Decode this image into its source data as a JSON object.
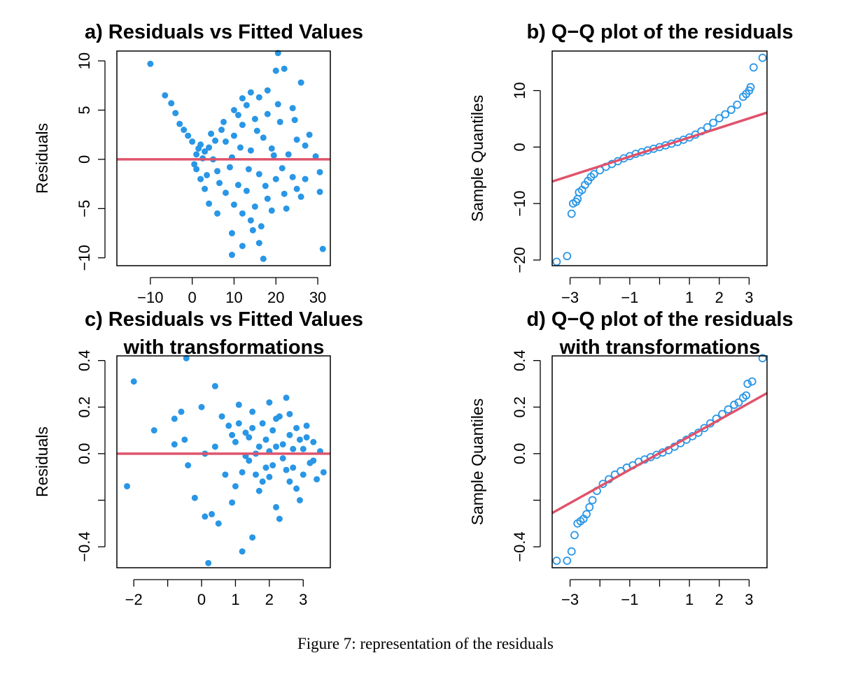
{
  "figure": {
    "caption": "Figure 7: representation of the residuals"
  },
  "colors": {
    "points": "#2996e6",
    "refline": "#df536b",
    "axes": "#000000"
  },
  "chart_data": [
    {
      "type": "scatter",
      "title_lines": [
        "a) Residuals vs Fitted Values"
      ],
      "xlabel": "",
      "ylabel": "Residuals",
      "xlim": [
        -18,
        33
      ],
      "ylim": [
        -10.8,
        11
      ],
      "xticks": [
        -10,
        0,
        10,
        20,
        30
      ],
      "xtick_labels": [
        "−10",
        "0",
        "10",
        "20",
        "30"
      ],
      "yticks": [
        -10,
        -5,
        0,
        5,
        10
      ],
      "ytick_labels": [
        "−10",
        "−5",
        "0",
        "5",
        "10"
      ],
      "marker": "filled",
      "refline": {
        "kind": "hline",
        "y": 0
      },
      "points": [
        [
          -10.0,
          9.7
        ],
        [
          -6.5,
          6.5
        ],
        [
          -5.0,
          5.7
        ],
        [
          -4.0,
          4.7
        ],
        [
          -3.0,
          3.6
        ],
        [
          -2.0,
          3.0
        ],
        [
          -1.0,
          2.4
        ],
        [
          0.0,
          1.8
        ],
        [
          2.0,
          1.5
        ],
        [
          4.0,
          1.2
        ],
        [
          7.0,
          3.0
        ],
        [
          10.0,
          5.0
        ],
        [
          12.0,
          6.2
        ],
        [
          14.0,
          6.8
        ],
        [
          16.0,
          6.3
        ],
        [
          18.0,
          7.0
        ],
        [
          20.0,
          9.0
        ],
        [
          20.5,
          10.8
        ],
        [
          22.0,
          9.2
        ],
        [
          26.0,
          7.8
        ],
        [
          24.0,
          5.2
        ],
        [
          28.0,
          2.5
        ],
        [
          29.5,
          0.3
        ],
        [
          30.5,
          -1.3
        ],
        [
          30.5,
          -3.3
        ],
        [
          31.2,
          -9.1
        ],
        [
          17.0,
          -10.1
        ],
        [
          16.0,
          -8.5
        ],
        [
          12.0,
          -8.8
        ],
        [
          9.5,
          -9.7
        ],
        [
          9.5,
          -7.5
        ],
        [
          6.0,
          -5.5
        ],
        [
          4.0,
          -4.5
        ],
        [
          3.0,
          -3.0
        ],
        [
          2.0,
          -2.0
        ],
        [
          1.0,
          -1.0
        ],
        [
          0.5,
          -0.5
        ],
        [
          1.0,
          0.5
        ],
        [
          3.0,
          0.8
        ],
        [
          5.0,
          0.0
        ],
        [
          6.0,
          -1.2
        ],
        [
          8.0,
          1.8
        ],
        [
          9.0,
          -0.8
        ],
        [
          10.0,
          2.4
        ],
        [
          11.0,
          -2.6
        ],
        [
          12.0,
          3.5
        ],
        [
          13.0,
          -3.2
        ],
        [
          14.0,
          0.9
        ],
        [
          15.0,
          4.1
        ],
        [
          16.0,
          -1.5
        ],
        [
          17.0,
          2.2
        ],
        [
          18.0,
          -4.0
        ],
        [
          19.0,
          1.1
        ],
        [
          20.0,
          -2.0
        ],
        [
          21.0,
          3.8
        ],
        [
          22.0,
          -3.5
        ],
        [
          23.0,
          0.5
        ],
        [
          24.0,
          -1.8
        ],
        [
          25.0,
          2.0
        ],
        [
          26.0,
          -3.8
        ],
        [
          27.0,
          1.4
        ],
        [
          8.0,
          -3.4
        ],
        [
          10.0,
          -4.6
        ],
        [
          12.0,
          -5.5
        ],
        [
          14.0,
          -6.2
        ],
        [
          11.0,
          4.5
        ],
        [
          13.0,
          5.5
        ],
        [
          15.0,
          -4.8
        ],
        [
          18.0,
          4.6
        ],
        [
          19.0,
          -5.2
        ],
        [
          20.5,
          5.6
        ],
        [
          7.5,
          3.8
        ],
        [
          6.5,
          -2.4
        ],
        [
          5.5,
          1.9
        ],
        [
          9.5,
          0.2
        ],
        [
          11.5,
          1.2
        ],
        [
          13.5,
          -1.0
        ],
        [
          15.5,
          2.9
        ],
        [
          17.5,
          -2.7
        ],
        [
          19.5,
          0.4
        ],
        [
          21.5,
          -0.9
        ],
        [
          4.5,
          2.6
        ],
        [
          3.5,
          -1.6
        ],
        [
          2.5,
          0.1
        ],
        [
          1.5,
          1.1
        ],
        [
          16.5,
          -6.8
        ],
        [
          14.5,
          -7.2
        ],
        [
          22.5,
          -5.0
        ],
        [
          25.0,
          -3.0
        ],
        [
          27.0,
          -2.0
        ],
        [
          24.5,
          4.0
        ]
      ]
    },
    {
      "type": "scatter",
      "title_lines": [
        "b) Q−Q plot of the residuals"
      ],
      "xlabel": "",
      "ylabel": "Sample Quantiles",
      "xlim": [
        -3.6,
        3.6
      ],
      "ylim": [
        -21,
        17
      ],
      "xticks": [
        -3,
        -2,
        -1,
        0,
        1,
        2,
        3
      ],
      "xtick_labels": [
        "−3",
        "",
        "−1",
        "",
        "1",
        "2",
        "3"
      ],
      "yticks": [
        -20,
        -10,
        0,
        10
      ],
      "ytick_labels": [
        "−20",
        "−10",
        "0",
        "10"
      ],
      "marker": "open",
      "refline": {
        "kind": "line",
        "x0": -3.6,
        "y0": -6.1,
        "x1": 3.6,
        "y1": 6.1
      },
      "points": [
        [
          -3.45,
          -20.3
        ],
        [
          -3.1,
          -19.3
        ],
        [
          -2.95,
          -11.8
        ],
        [
          -2.9,
          -10.0
        ],
        [
          -2.8,
          -9.7
        ],
        [
          -2.75,
          -9.2
        ],
        [
          -2.7,
          -8.0
        ],
        [
          -2.6,
          -7.6
        ],
        [
          -2.5,
          -6.7
        ],
        [
          -2.4,
          -6.0
        ],
        [
          -2.3,
          -5.3
        ],
        [
          -2.2,
          -4.8
        ],
        [
          -2.0,
          -4.1
        ],
        [
          -1.8,
          -3.5
        ],
        [
          -1.6,
          -3.0
        ],
        [
          -1.4,
          -2.5
        ],
        [
          -1.2,
          -2.0
        ],
        [
          -1.0,
          -1.6
        ],
        [
          -0.8,
          -1.2
        ],
        [
          -0.6,
          -0.9
        ],
        [
          -0.4,
          -0.6
        ],
        [
          -0.2,
          -0.3
        ],
        [
          0.0,
          0.0
        ],
        [
          0.2,
          0.3
        ],
        [
          0.4,
          0.6
        ],
        [
          0.6,
          0.9
        ],
        [
          0.8,
          1.3
        ],
        [
          1.0,
          1.7
        ],
        [
          1.2,
          2.2
        ],
        [
          1.4,
          2.8
        ],
        [
          1.6,
          3.5
        ],
        [
          1.8,
          4.3
        ],
        [
          2.0,
          5.1
        ],
        [
          2.2,
          5.8
        ],
        [
          2.4,
          6.6
        ],
        [
          2.6,
          7.5
        ],
        [
          2.8,
          8.9
        ],
        [
          2.9,
          9.4
        ],
        [
          3.0,
          10.0
        ],
        [
          3.05,
          10.6
        ],
        [
          3.15,
          14.1
        ],
        [
          3.45,
          15.8
        ]
      ]
    },
    {
      "type": "scatter",
      "title_lines": [
        "c) Residuals vs Fitted Values",
        "with transformations"
      ],
      "xlabel": "",
      "ylabel": "Residuals",
      "xlim": [
        -2.5,
        3.8
      ],
      "ylim": [
        -0.49,
        0.42
      ],
      "xticks": [
        -2,
        -1,
        0,
        1,
        2,
        3
      ],
      "xtick_labels": [
        "−2",
        "",
        "0",
        "1",
        "2",
        "3"
      ],
      "yticks": [
        -0.4,
        -0.2,
        0.0,
        0.2,
        0.4
      ],
      "ytick_labels": [
        "−0.4",
        "",
        "0.0",
        "0.2",
        "0.4"
      ],
      "marker": "filled",
      "refline": {
        "kind": "hline",
        "y": 0
      },
      "points": [
        [
          -2.2,
          -0.14
        ],
        [
          -2.0,
          0.31
        ],
        [
          -1.4,
          0.1
        ],
        [
          -0.8,
          0.15
        ],
        [
          -0.8,
          0.04
        ],
        [
          -0.6,
          0.18
        ],
        [
          -0.5,
          0.06
        ],
        [
          -0.4,
          -0.05
        ],
        [
          -0.45,
          0.41
        ],
        [
          -0.2,
          -0.19
        ],
        [
          0.0,
          0.2
        ],
        [
          0.1,
          0.0
        ],
        [
          0.1,
          -0.27
        ],
        [
          0.2,
          -0.47
        ],
        [
          0.3,
          -0.26
        ],
        [
          0.4,
          0.03
        ],
        [
          0.4,
          0.29
        ],
        [
          0.5,
          -0.3
        ],
        [
          0.6,
          0.16
        ],
        [
          0.7,
          -0.09
        ],
        [
          0.8,
          0.12
        ],
        [
          0.9,
          -0.21
        ],
        [
          1.0,
          0.05
        ],
        [
          1.0,
          -0.14
        ],
        [
          1.1,
          0.21
        ],
        [
          1.2,
          -0.08
        ],
        [
          1.2,
          -0.42
        ],
        [
          1.3,
          0.09
        ],
        [
          1.4,
          -0.03
        ],
        [
          1.5,
          0.18
        ],
        [
          1.5,
          -0.36
        ],
        [
          1.6,
          0.0
        ],
        [
          1.7,
          -0.16
        ],
        [
          1.8,
          0.13
        ],
        [
          1.9,
          0.06
        ],
        [
          2.0,
          -0.1
        ],
        [
          2.0,
          0.22
        ],
        [
          2.1,
          -0.05
        ],
        [
          2.2,
          0.03
        ],
        [
          2.2,
          -0.23
        ],
        [
          2.3,
          0.16
        ],
        [
          2.3,
          -0.28
        ],
        [
          2.4,
          -0.02
        ],
        [
          2.5,
          0.24
        ],
        [
          2.6,
          0.08
        ],
        [
          2.6,
          -0.12
        ],
        [
          2.7,
          -0.06
        ],
        [
          2.8,
          0.11
        ],
        [
          2.9,
          -0.2
        ],
        [
          3.0,
          0.02
        ],
        [
          3.0,
          -0.09
        ],
        [
          3.1,
          0.07
        ],
        [
          3.2,
          -0.04
        ],
        [
          3.3,
          0.05
        ],
        [
          3.4,
          -0.11
        ],
        [
          3.5,
          0.01
        ],
        [
          3.6,
          -0.08
        ],
        [
          1.4,
          0.07
        ],
        [
          1.7,
          0.03
        ],
        [
          1.9,
          -0.06
        ],
        [
          2.1,
          0.1
        ],
        [
          2.4,
          0.04
        ],
        [
          2.7,
          0.02
        ],
        [
          1.6,
          -0.09
        ],
        [
          1.3,
          -0.01
        ],
        [
          1.8,
          -0.12
        ],
        [
          2.5,
          -0.07
        ],
        [
          2.9,
          0.06
        ],
        [
          3.3,
          -0.03
        ],
        [
          1.1,
          0.13
        ],
        [
          0.9,
          0.08
        ],
        [
          2.2,
          0.15
        ],
        [
          2.8,
          -0.15
        ],
        [
          1.5,
          0.11
        ],
        [
          2.0,
          0.01
        ],
        [
          2.6,
          0.17
        ],
        [
          3.1,
          0.12
        ]
      ]
    },
    {
      "type": "scatter",
      "title_lines": [
        "d) Q−Q plot of the residuals",
        "with transformations"
      ],
      "xlabel": "",
      "ylabel": "Sample Quantiles",
      "xlim": [
        -3.6,
        3.6
      ],
      "ylim": [
        -0.49,
        0.42
      ],
      "xticks": [
        -3,
        -2,
        -1,
        0,
        1,
        2,
        3
      ],
      "xtick_labels": [
        "−3",
        "",
        "−1",
        "",
        "1",
        "2",
        "3"
      ],
      "yticks": [
        -0.4,
        -0.2,
        0.0,
        0.2,
        0.4
      ],
      "ytick_labels": [
        "−0.4",
        "",
        "0.0",
        "0.2",
        "0.4"
      ],
      "marker": "open",
      "refline": {
        "kind": "line",
        "x0": -3.6,
        "y0": -0.255,
        "x1": 3.6,
        "y1": 0.26
      },
      "points": [
        [
          -3.45,
          -0.46
        ],
        [
          -3.1,
          -0.46
        ],
        [
          -2.95,
          -0.42
        ],
        [
          -2.85,
          -0.35
        ],
        [
          -2.75,
          -0.3
        ],
        [
          -2.65,
          -0.29
        ],
        [
          -2.55,
          -0.28
        ],
        [
          -2.45,
          -0.26
        ],
        [
          -2.35,
          -0.23
        ],
        [
          -2.25,
          -0.2
        ],
        [
          -2.1,
          -0.16
        ],
        [
          -1.9,
          -0.13
        ],
        [
          -1.7,
          -0.11
        ],
        [
          -1.5,
          -0.09
        ],
        [
          -1.3,
          -0.075
        ],
        [
          -1.1,
          -0.06
        ],
        [
          -0.9,
          -0.05
        ],
        [
          -0.7,
          -0.035
        ],
        [
          -0.5,
          -0.025
        ],
        [
          -0.3,
          -0.015
        ],
        [
          -0.1,
          -0.005
        ],
        [
          0.1,
          0.005
        ],
        [
          0.3,
          0.015
        ],
        [
          0.5,
          0.03
        ],
        [
          0.7,
          0.045
        ],
        [
          0.9,
          0.06
        ],
        [
          1.1,
          0.075
        ],
        [
          1.3,
          0.09
        ],
        [
          1.5,
          0.11
        ],
        [
          1.7,
          0.13
        ],
        [
          1.9,
          0.15
        ],
        [
          2.1,
          0.17
        ],
        [
          2.3,
          0.19
        ],
        [
          2.5,
          0.21
        ],
        [
          2.65,
          0.22
        ],
        [
          2.8,
          0.24
        ],
        [
          2.9,
          0.25
        ],
        [
          2.95,
          0.3
        ],
        [
          3.1,
          0.31
        ],
        [
          3.45,
          0.41
        ]
      ]
    }
  ]
}
